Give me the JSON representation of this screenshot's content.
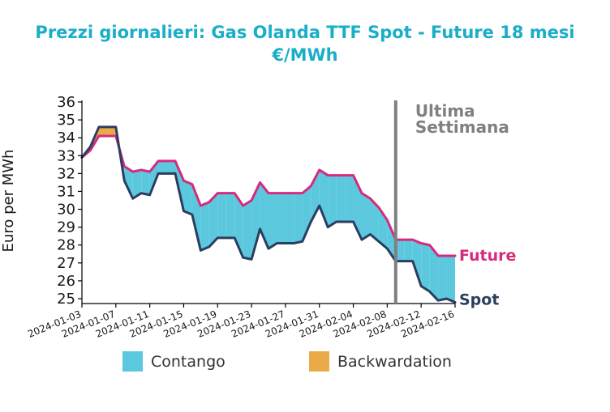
{
  "chart_data": {
    "type": "area",
    "title_line1": "Prezzi giornalieri: Gas Olanda TTF Spot - Future 18 mesi",
    "title_line2": "€/MWh",
    "xlabel": "",
    "ylabel": "Euro per MWh",
    "ylim": [
      24.8,
      36
    ],
    "yticks": [
      25,
      26,
      27,
      28,
      29,
      30,
      31,
      32,
      33,
      34,
      35,
      36
    ],
    "xlim": [
      "2024-01-03",
      "2024-02-16"
    ],
    "xticks": [
      "2024-01-03",
      "2024-01-07",
      "2024-01-11",
      "2024-01-15",
      "2024-01-19",
      "2024-01-23",
      "2024-01-27",
      "2024-01-31",
      "2024-02-04",
      "2024-02-08",
      "2024-02-12",
      "2024-02-16"
    ],
    "grid": false,
    "x": [
      "2024-01-03",
      "2024-01-04",
      "2024-01-05",
      "2024-01-06",
      "2024-01-07",
      "2024-01-08",
      "2024-01-09",
      "2024-01-10",
      "2024-01-11",
      "2024-01-12",
      "2024-01-13",
      "2024-01-14",
      "2024-01-15",
      "2024-01-16",
      "2024-01-17",
      "2024-01-18",
      "2024-01-19",
      "2024-01-20",
      "2024-01-21",
      "2024-01-22",
      "2024-01-23",
      "2024-01-24",
      "2024-01-25",
      "2024-01-26",
      "2024-01-27",
      "2024-01-28",
      "2024-01-29",
      "2024-01-30",
      "2024-01-31",
      "2024-02-01",
      "2024-02-02",
      "2024-02-03",
      "2024-02-04",
      "2024-02-05",
      "2024-02-06",
      "2024-02-07",
      "2024-02-08",
      "2024-02-09",
      "2024-02-10",
      "2024-02-11",
      "2024-02-12",
      "2024-02-13",
      "2024-02-14",
      "2024-02-15",
      "2024-02-16"
    ],
    "series": [
      {
        "name": "Future",
        "color": "#d62a7e",
        "values": [
          32.9,
          33.3,
          34.1,
          34.1,
          34.1,
          32.4,
          32.1,
          32.2,
          32.1,
          32.7,
          32.7,
          32.7,
          31.6,
          31.4,
          30.2,
          30.4,
          30.9,
          30.9,
          30.9,
          30.2,
          30.5,
          31.5,
          30.9,
          30.9,
          30.9,
          30.9,
          30.9,
          31.3,
          32.2,
          31.9,
          31.9,
          31.9,
          31.9,
          30.9,
          30.6,
          30.1,
          29.4,
          28.3,
          28.3,
          28.3,
          28.1,
          28.0,
          27.4,
          27.4,
          27.4
        ]
      },
      {
        "name": "Spot",
        "color": "#2c3e5f",
        "values": [
          32.9,
          33.5,
          34.6,
          34.6,
          34.6,
          31.6,
          30.6,
          30.9,
          30.8,
          32.0,
          32.0,
          32.0,
          29.9,
          29.7,
          27.7,
          27.9,
          28.4,
          28.4,
          28.4,
          27.3,
          27.2,
          28.9,
          27.8,
          28.1,
          28.1,
          28.1,
          28.2,
          29.3,
          30.2,
          29.0,
          29.3,
          29.3,
          29.3,
          28.3,
          28.6,
          28.2,
          27.8,
          27.1,
          27.1,
          27.1,
          25.7,
          25.4,
          24.9,
          25.0,
          24.8
        ]
      }
    ],
    "fill_colors": {
      "contango": "#5bc8de",
      "backwardation": "#eaaa47"
    },
    "annotations": [
      {
        "type": "vline",
        "x": "2024-02-09",
        "color": "#808080",
        "label_line1": "Ultima",
        "label_line2": "Settimana"
      }
    ],
    "end_labels": [
      {
        "series": "Future",
        "text": "Future"
      },
      {
        "series": "Spot",
        "text": "Spot"
      }
    ],
    "legend": {
      "placement": "bottom",
      "items": [
        {
          "label": "Contango",
          "color": "#5bc8de"
        },
        {
          "label": "Backwardation",
          "color": "#eaaa47"
        }
      ]
    }
  }
}
